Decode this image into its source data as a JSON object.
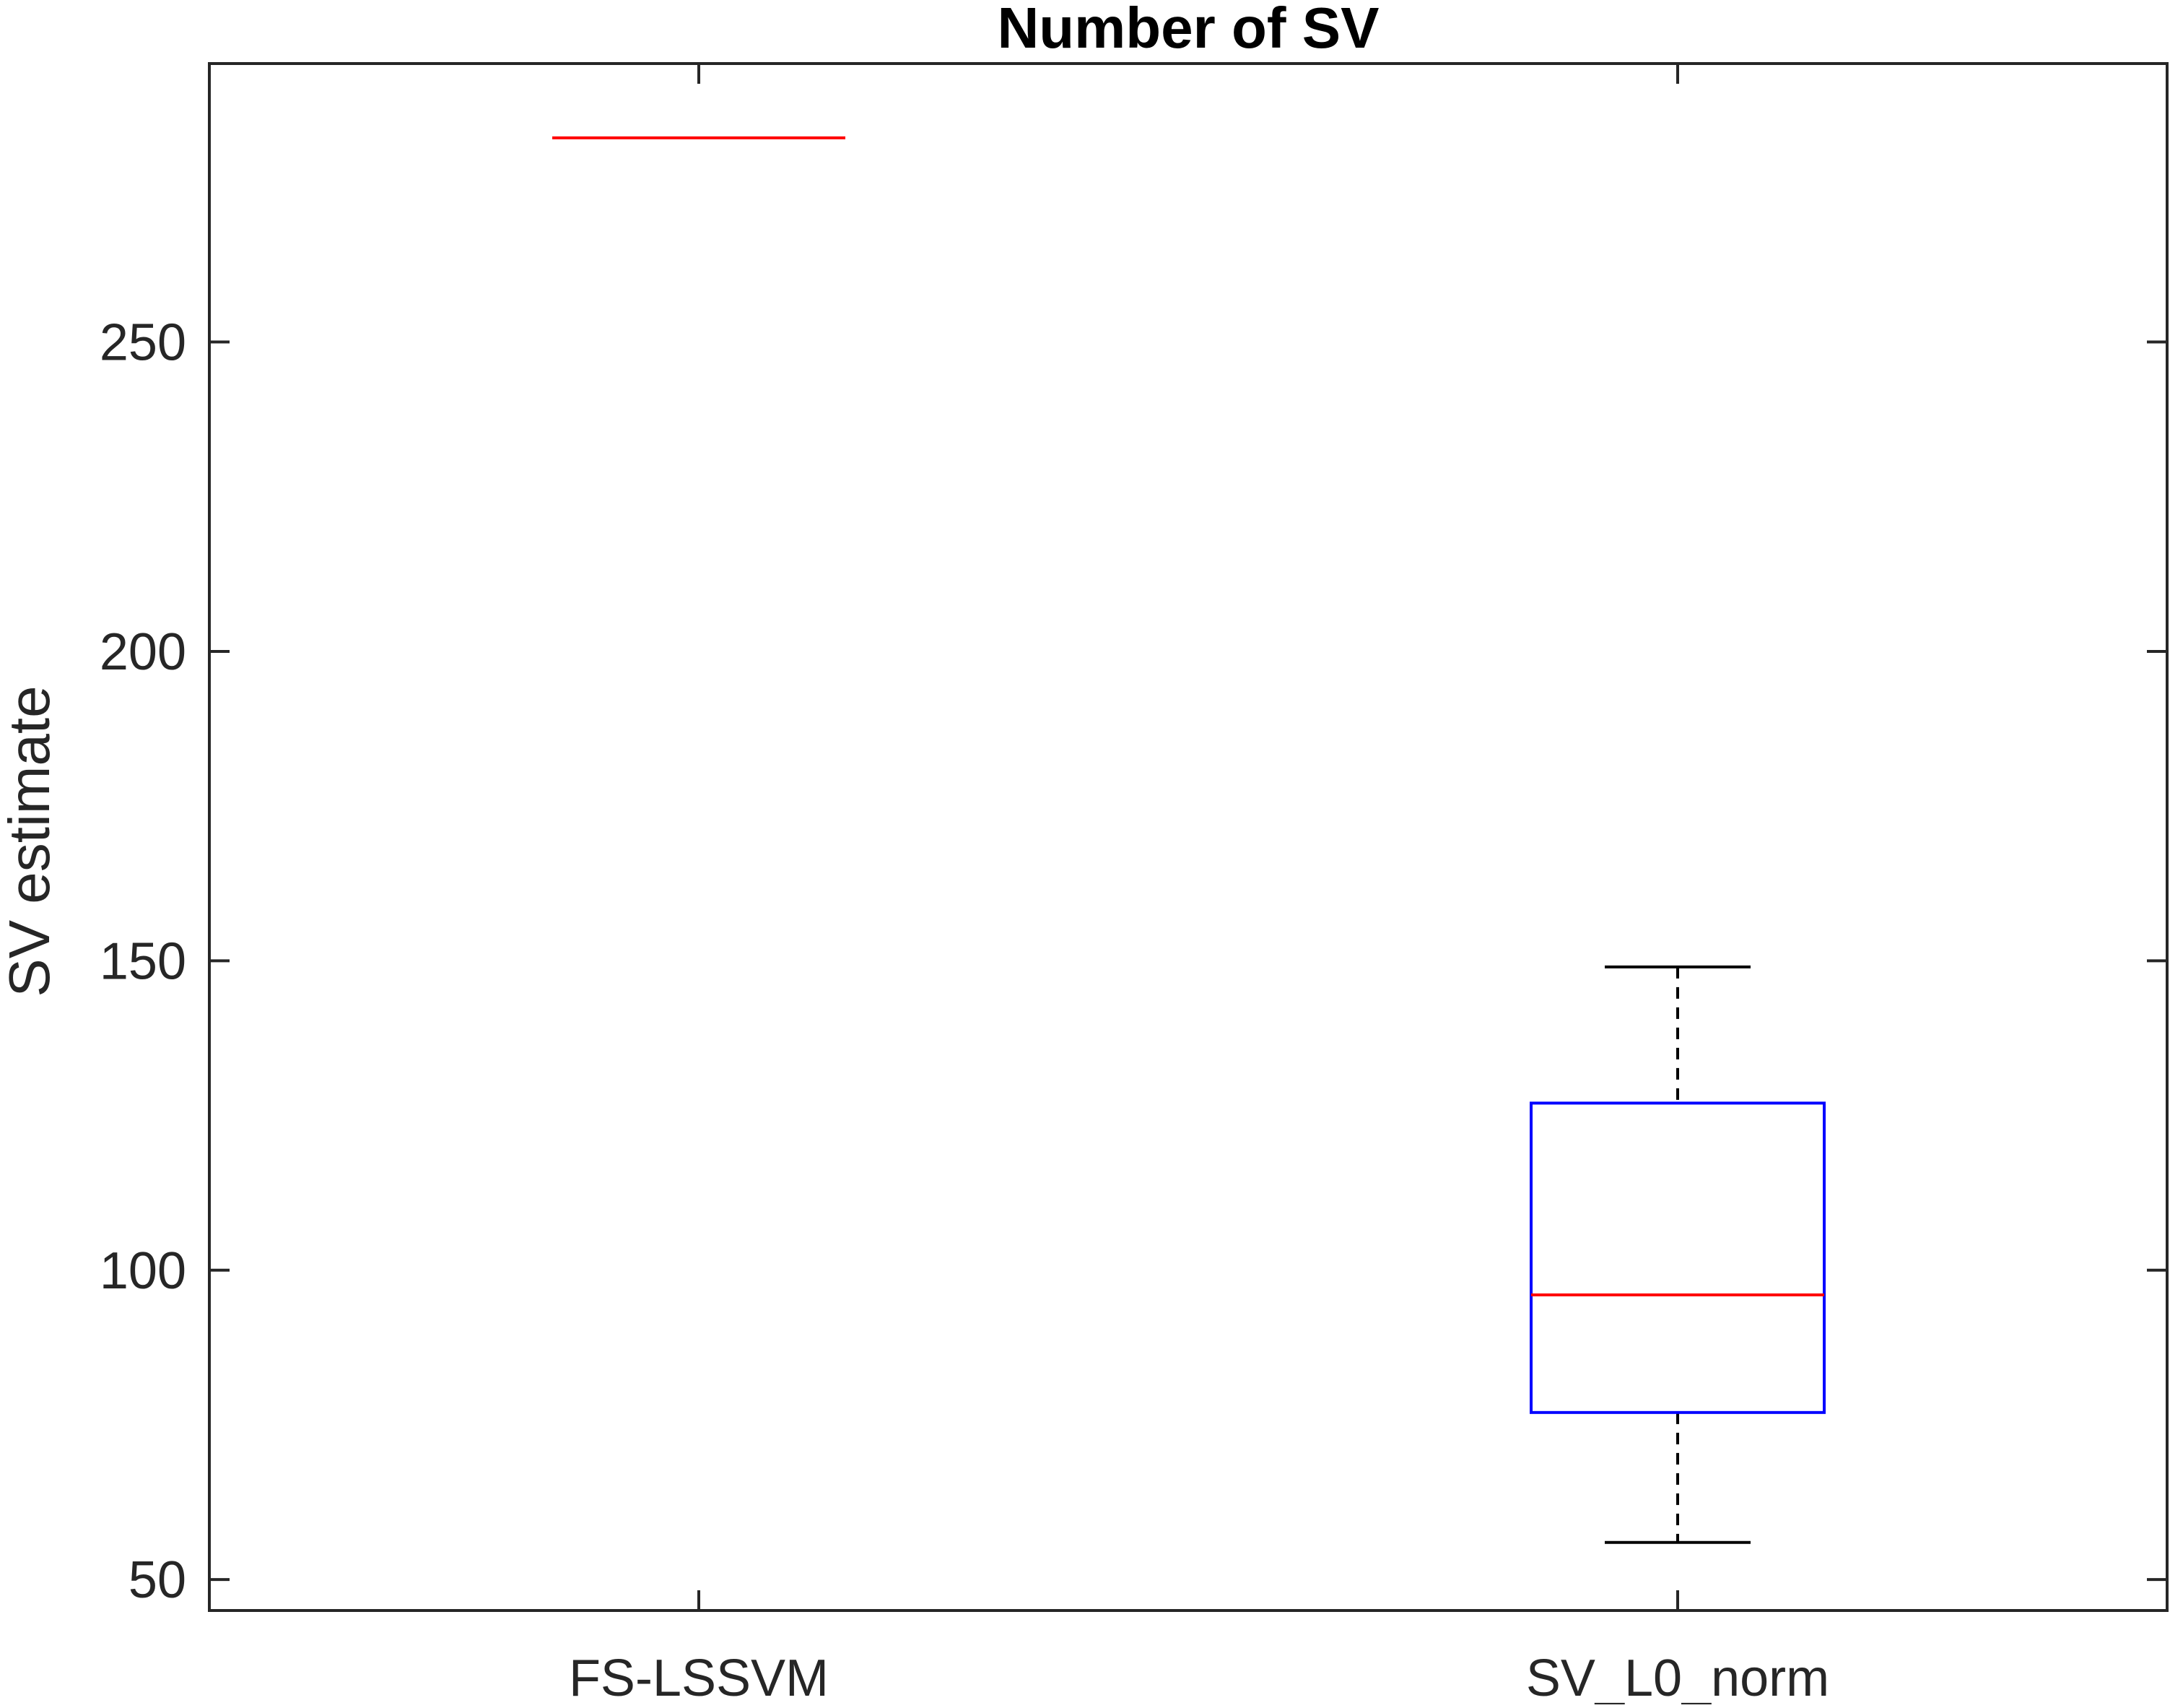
{
  "chart_data": {
    "type": "boxplot",
    "title": "Number of SV",
    "xlabel": "",
    "ylabel": "SV estimate",
    "categories": [
      "FS-LSSVM",
      "SV_L0_norm"
    ],
    "boxes": [
      {
        "category": "FS-LSSVM",
        "whisker_low": 283,
        "q1": 283,
        "median": 283,
        "q3": 283,
        "whisker_high": 283
      },
      {
        "category": "SV_L0_norm",
        "whisker_low": 56,
        "q1": 77,
        "median": 96,
        "q3": 127,
        "whisker_high": 149
      }
    ],
    "yticks": [
      50,
      100,
      150,
      200,
      250
    ],
    "ylim": [
      45,
      295
    ],
    "grid": false,
    "colors": {
      "box": "#0000ff",
      "median": "#ff0000",
      "whisker": "#000000",
      "axis": "#262626"
    }
  }
}
